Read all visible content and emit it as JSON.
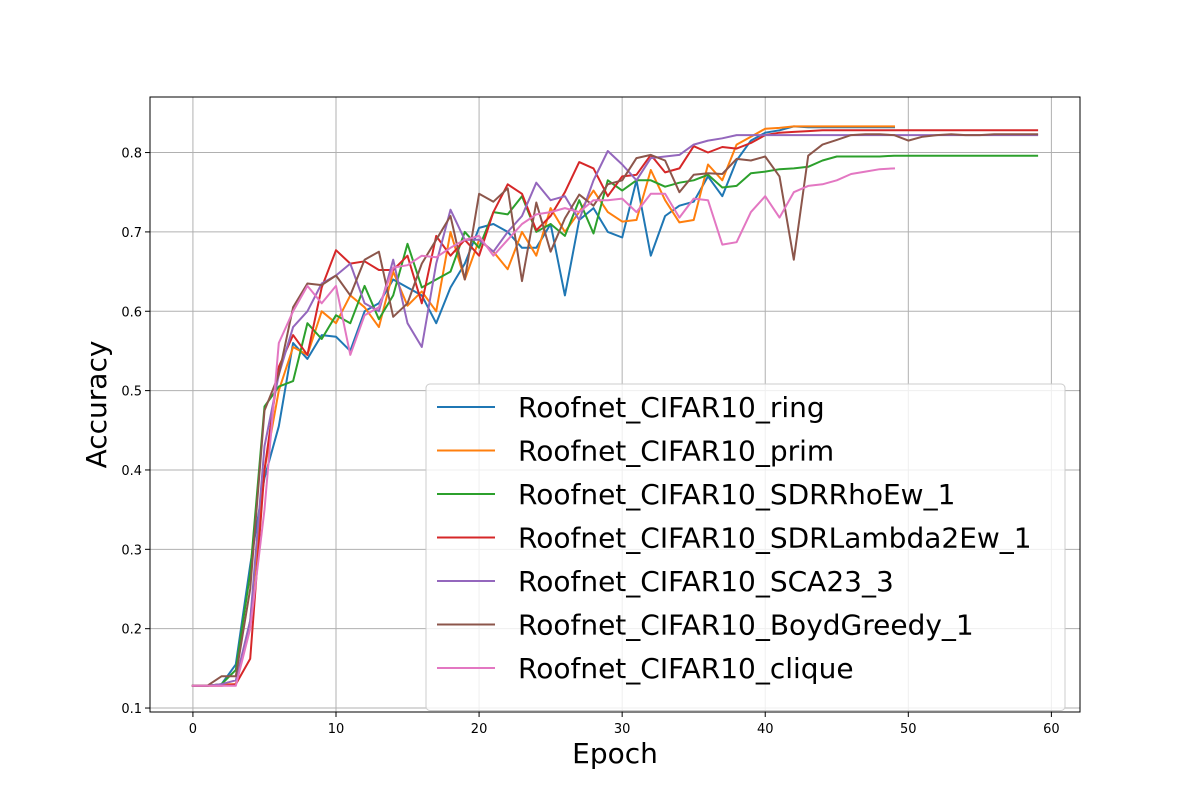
{
  "chart_data": {
    "type": "line",
    "title": "",
    "xlabel": "Epoch",
    "ylabel": "Accuracy",
    "xlim": [
      -3,
      62
    ],
    "ylim": [
      0.095,
      0.87
    ],
    "xticks": [
      0,
      10,
      20,
      30,
      40,
      50,
      60
    ],
    "yticks": [
      0.1,
      0.2,
      0.3,
      0.4,
      0.5,
      0.6,
      0.7,
      0.8
    ],
    "grid": true,
    "legend_position": "lower-right",
    "series": [
      {
        "name": "Roofnet_CIFAR10_ring",
        "color": "#1f77b4",
        "values": [
          0.128,
          0.128,
          0.13,
          0.155,
          0.28,
          0.39,
          0.455,
          0.56,
          0.54,
          0.57,
          0.568,
          0.55,
          0.6,
          0.61,
          0.64,
          0.63,
          0.62,
          0.585,
          0.63,
          0.66,
          0.705,
          0.71,
          0.7,
          0.68,
          0.68,
          0.71,
          0.62,
          0.715,
          0.73,
          0.7,
          0.693,
          0.765,
          0.67,
          0.72,
          0.733,
          0.738,
          0.77,
          0.745,
          0.79,
          0.815,
          0.825,
          0.828,
          0.833,
          0.832,
          0.832,
          0.832,
          0.832,
          0.832,
          0.832,
          0.832
        ]
      },
      {
        "name": "Roofnet_CIFAR10_prim",
        "color": "#ff7f0e",
        "values": [
          0.128,
          0.128,
          0.13,
          0.13,
          0.21,
          0.4,
          0.5,
          0.555,
          0.545,
          0.6,
          0.585,
          0.62,
          0.605,
          0.58,
          0.65,
          0.607,
          0.625,
          0.6,
          0.7,
          0.64,
          0.69,
          0.675,
          0.653,
          0.7,
          0.67,
          0.73,
          0.7,
          0.725,
          0.752,
          0.725,
          0.713,
          0.715,
          0.778,
          0.74,
          0.712,
          0.715,
          0.785,
          0.765,
          0.81,
          0.82,
          0.83,
          0.831,
          0.833,
          0.833,
          0.833,
          0.833,
          0.833,
          0.833,
          0.833,
          0.833
        ]
      },
      {
        "name": "Roofnet_CIFAR10_SDRRhoEw_1",
        "color": "#2ca02c",
        "values": [
          0.128,
          0.128,
          0.13,
          0.148,
          0.27,
          0.48,
          0.505,
          0.512,
          0.585,
          0.565,
          0.595,
          0.585,
          0.632,
          0.59,
          0.62,
          0.685,
          0.63,
          0.64,
          0.65,
          0.7,
          0.68,
          0.725,
          0.722,
          0.745,
          0.7,
          0.71,
          0.695,
          0.74,
          0.698,
          0.765,
          0.752,
          0.765,
          0.765,
          0.757,
          0.762,
          0.765,
          0.772,
          0.756,
          0.758,
          0.774,
          0.776,
          0.779,
          0.78,
          0.782,
          0.79,
          0.795,
          0.795,
          0.795,
          0.795,
          0.796,
          0.796,
          0.796,
          0.796,
          0.796,
          0.796,
          0.796,
          0.796,
          0.796,
          0.796,
          0.796
        ]
      },
      {
        "name": "Roofnet_CIFAR10_SDRLambda2Ew_1",
        "color": "#d62728",
        "values": [
          0.128,
          0.128,
          0.128,
          0.13,
          0.162,
          0.4,
          0.53,
          0.57,
          0.545,
          0.63,
          0.677,
          0.66,
          0.663,
          0.652,
          0.652,
          0.67,
          0.61,
          0.695,
          0.67,
          0.69,
          0.67,
          0.725,
          0.76,
          0.748,
          0.702,
          0.72,
          0.75,
          0.788,
          0.78,
          0.745,
          0.77,
          0.772,
          0.797,
          0.775,
          0.78,
          0.808,
          0.8,
          0.807,
          0.805,
          0.812,
          0.822,
          0.825,
          0.826,
          0.827,
          0.828,
          0.828,
          0.828,
          0.828,
          0.828,
          0.828,
          0.828,
          0.828,
          0.828,
          0.828,
          0.828,
          0.828,
          0.828,
          0.828,
          0.828,
          0.828
        ]
      },
      {
        "name": "Roofnet_CIFAR10_SCA23_3",
        "color": "#9467bd",
        "values": [
          0.128,
          0.128,
          0.13,
          0.135,
          0.21,
          0.43,
          0.52,
          0.58,
          0.6,
          0.635,
          0.645,
          0.66,
          0.61,
          0.6,
          0.665,
          0.585,
          0.555,
          0.66,
          0.728,
          0.69,
          0.69,
          0.675,
          0.7,
          0.72,
          0.762,
          0.74,
          0.745,
          0.715,
          0.765,
          0.802,
          0.785,
          0.765,
          0.793,
          0.795,
          0.797,
          0.81,
          0.815,
          0.818,
          0.822,
          0.822,
          0.822,
          0.822,
          0.822,
          0.822,
          0.822,
          0.822,
          0.822,
          0.822,
          0.822,
          0.822,
          0.822,
          0.822,
          0.822,
          0.822,
          0.822,
          0.822,
          0.822,
          0.822,
          0.822,
          0.822
        ]
      },
      {
        "name": "Roofnet_CIFAR10_BoydGreedy_1",
        "color": "#8c564b",
        "values": [
          0.128,
          0.128,
          0.14,
          0.14,
          0.25,
          0.475,
          0.52,
          0.605,
          0.635,
          0.633,
          0.645,
          0.62,
          0.665,
          0.675,
          0.593,
          0.61,
          0.66,
          0.69,
          0.72,
          0.64,
          0.748,
          0.738,
          0.755,
          0.638,
          0.737,
          0.675,
          0.717,
          0.747,
          0.733,
          0.76,
          0.765,
          0.793,
          0.797,
          0.79,
          0.75,
          0.772,
          0.774,
          0.773,
          0.792,
          0.79,
          0.795,
          0.77,
          0.665,
          0.796,
          0.81,
          0.816,
          0.822,
          0.823,
          0.823,
          0.822,
          0.815,
          0.82,
          0.822,
          0.823,
          0.822,
          0.822,
          0.823,
          0.823,
          0.823,
          0.823
        ]
      },
      {
        "name": "Roofnet_CIFAR10_clique",
        "color": "#e377c2",
        "values": [
          0.128,
          0.128,
          0.128,
          0.128,
          0.2,
          0.35,
          0.56,
          0.6,
          0.632,
          0.61,
          0.632,
          0.545,
          0.595,
          0.605,
          0.655,
          0.658,
          0.67,
          0.668,
          0.68,
          0.69,
          0.695,
          0.67,
          0.69,
          0.71,
          0.722,
          0.725,
          0.73,
          0.725,
          0.74,
          0.74,
          0.742,
          0.725,
          0.748,
          0.748,
          0.718,
          0.742,
          0.74,
          0.684,
          0.687,
          0.725,
          0.745,
          0.718,
          0.75,
          0.758,
          0.76,
          0.765,
          0.773,
          0.776,
          0.779,
          0.78
        ]
      }
    ]
  }
}
